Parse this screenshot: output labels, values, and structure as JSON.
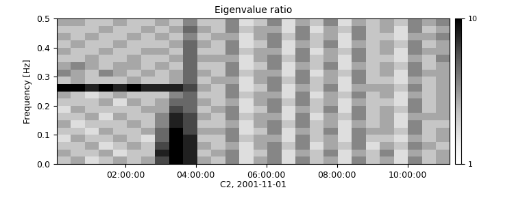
{
  "chart_data": {
    "type": "heatmap",
    "title": "Eigenvalue ratio",
    "x_label": "C2, 2001-11-01",
    "y_label": "Frequency [Hz]",
    "xlim": [
      0.05,
      11.2
    ],
    "xticks": [
      {
        "value": 2,
        "label": "02:00:00"
      },
      {
        "value": 4,
        "label": "04:00:00"
      },
      {
        "value": 6,
        "label": "06:00:00"
      },
      {
        "value": 8,
        "label": "08:00:00"
      },
      {
        "value": 10,
        "label": "10:00:00"
      }
    ],
    "ylim": [
      0.0,
      0.5
    ],
    "yticks": [
      0.0,
      0.1,
      0.2,
      0.3,
      0.4,
      0.5
    ],
    "colorbar_range": [
      1,
      10
    ],
    "colorbar_ticks": [
      1,
      10
    ],
    "cells": [
      [
        4,
        5,
        3,
        4,
        5,
        4,
        5,
        8,
        10,
        9,
        5,
        4,
        6,
        3,
        5,
        6,
        3,
        6,
        4,
        5,
        3,
        6,
        4,
        5,
        3,
        6,
        4,
        5
      ],
      [
        5,
        4,
        4,
        5,
        3,
        4,
        4,
        9,
        10,
        9,
        4,
        5,
        6,
        3,
        4,
        6,
        3,
        5,
        4,
        6,
        3,
        5,
        4,
        6,
        3,
        5,
        4,
        5
      ],
      [
        4,
        4,
        5,
        3,
        4,
        5,
        4,
        8,
        10,
        9,
        5,
        4,
        5,
        3,
        5,
        6,
        4,
        6,
        3,
        5,
        4,
        6,
        3,
        5,
        4,
        6,
        5,
        4
      ],
      [
        3,
        5,
        4,
        4,
        5,
        4,
        3,
        7,
        10,
        9,
        4,
        4,
        6,
        4,
        5,
        5,
        3,
        6,
        4,
        5,
        3,
        6,
        4,
        4,
        3,
        5,
        4,
        5
      ],
      [
        4,
        4,
        3,
        5,
        4,
        4,
        5,
        7,
        10,
        8,
        5,
        5,
        6,
        3,
        4,
        6,
        3,
        5,
        4,
        6,
        3,
        6,
        5,
        5,
        4,
        6,
        4,
        5
      ],
      [
        5,
        3,
        4,
        4,
        4,
        5,
        4,
        6,
        9,
        8,
        4,
        4,
        5,
        3,
        5,
        6,
        4,
        6,
        4,
        5,
        3,
        5,
        4,
        5,
        3,
        6,
        4,
        4
      ],
      [
        4,
        4,
        5,
        3,
        5,
        4,
        4,
        6,
        9,
        8,
        5,
        4,
        6,
        4,
        5,
        5,
        3,
        6,
        3,
        5,
        4,
        6,
        4,
        5,
        3,
        5,
        5,
        5
      ],
      [
        3,
        5,
        4,
        4,
        4,
        4,
        5,
        5,
        8,
        7,
        4,
        5,
        6,
        3,
        4,
        6,
        3,
        5,
        4,
        6,
        3,
        6,
        4,
        5,
        4,
        6,
        4,
        5
      ],
      [
        4,
        4,
        4,
        5,
        3,
        5,
        4,
        5,
        7,
        7,
        5,
        4,
        5,
        3,
        5,
        6,
        4,
        6,
        4,
        5,
        3,
        5,
        4,
        4,
        3,
        6,
        4,
        5
      ],
      [
        5,
        4,
        3,
        4,
        5,
        4,
        4,
        4,
        6,
        7,
        4,
        4,
        6,
        4,
        5,
        5,
        3,
        6,
        3,
        5,
        4,
        6,
        4,
        5,
        3,
        5,
        4,
        5
      ],
      [
        10,
        10,
        9,
        10,
        9,
        10,
        9,
        9,
        9,
        8,
        5,
        4,
        6,
        3,
        4,
        6,
        3,
        5,
        4,
        6,
        3,
        5,
        5,
        5,
        4,
        6,
        4,
        5
      ],
      [
        4,
        5,
        4,
        4,
        4,
        5,
        4,
        4,
        5,
        7,
        4,
        5,
        5,
        3,
        5,
        6,
        4,
        6,
        4,
        5,
        3,
        6,
        4,
        4,
        3,
        5,
        4,
        5
      ],
      [
        6,
        5,
        4,
        6,
        5,
        4,
        5,
        4,
        5,
        7,
        5,
        4,
        6,
        4,
        5,
        5,
        3,
        6,
        3,
        5,
        4,
        6,
        4,
        5,
        3,
        6,
        5,
        5
      ],
      [
        5,
        6,
        5,
        4,
        5,
        5,
        4,
        5,
        4,
        7,
        4,
        4,
        6,
        3,
        4,
        6,
        3,
        5,
        4,
        6,
        3,
        5,
        4,
        5,
        4,
        6,
        4,
        5
      ],
      [
        4,
        4,
        5,
        4,
        4,
        5,
        4,
        4,
        5,
        7,
        5,
        5,
        5,
        3,
        5,
        6,
        4,
        6,
        4,
        5,
        3,
        6,
        4,
        4,
        3,
        5,
        4,
        6
      ],
      [
        5,
        4,
        4,
        5,
        4,
        4,
        5,
        5,
        4,
        7,
        4,
        4,
        6,
        4,
        5,
        5,
        3,
        6,
        3,
        5,
        4,
        6,
        4,
        5,
        3,
        6,
        5,
        5
      ],
      [
        4,
        5,
        4,
        4,
        5,
        4,
        4,
        4,
        5,
        7,
        5,
        4,
        6,
        3,
        4,
        6,
        3,
        5,
        4,
        6,
        3,
        5,
        4,
        5,
        4,
        6,
        4,
        5
      ],
      [
        5,
        4,
        5,
        4,
        4,
        5,
        4,
        5,
        4,
        6,
        4,
        5,
        5,
        3,
        5,
        6,
        4,
        6,
        4,
        5,
        3,
        6,
        4,
        4,
        3,
        5,
        5,
        6
      ],
      [
        4,
        4,
        4,
        5,
        4,
        4,
        5,
        4,
        5,
        7,
        5,
        4,
        6,
        4,
        5,
        5,
        3,
        6,
        3,
        5,
        4,
        6,
        4,
        5,
        3,
        6,
        4,
        5
      ],
      [
        5,
        5,
        4,
        4,
        5,
        4,
        4,
        5,
        4,
        6,
        4,
        4,
        6,
        3,
        4,
        6,
        3,
        5,
        4,
        6,
        3,
        5,
        4,
        5,
        4,
        6,
        5,
        6
      ]
    ]
  }
}
